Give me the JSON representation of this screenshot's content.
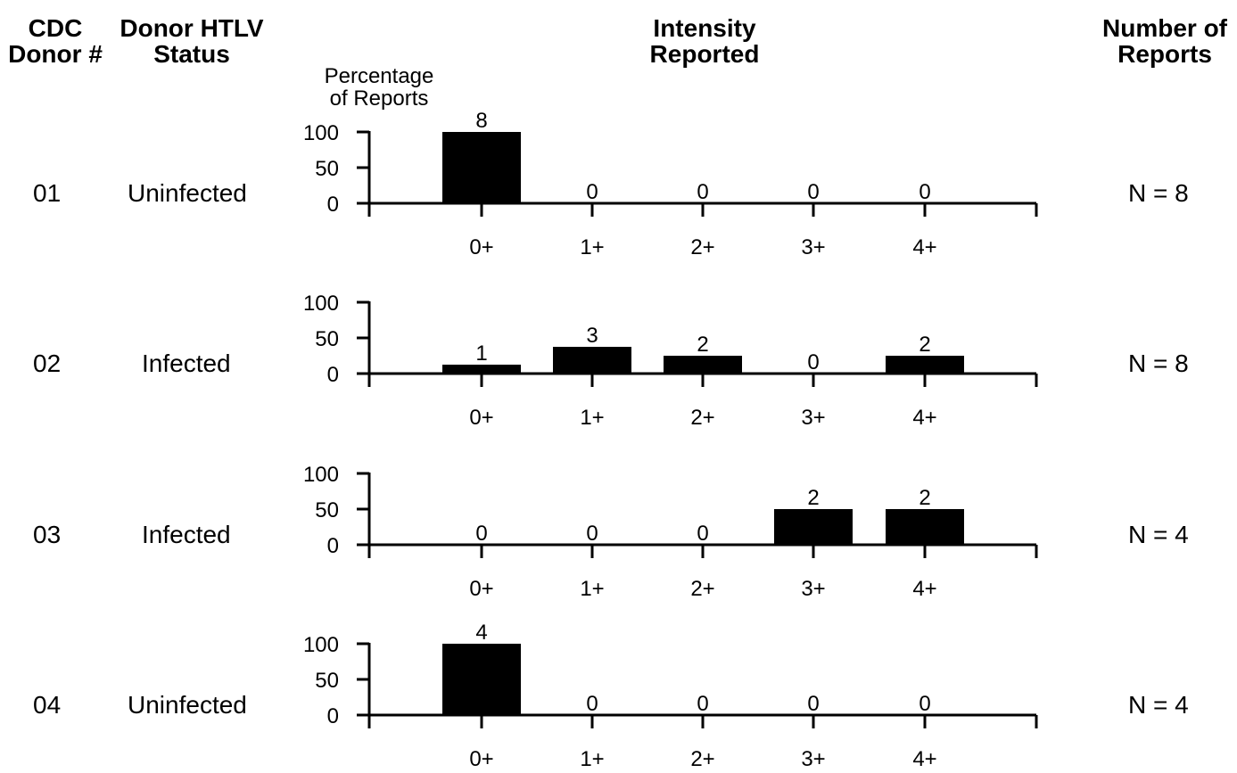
{
  "headers": {
    "donor_num": [
      "CDC",
      "Donor #"
    ],
    "status": [
      "Donor HTLV",
      "Status"
    ],
    "intensity": [
      "Intensity",
      "Reported"
    ],
    "reports": [
      "Number of",
      "Reports"
    ]
  },
  "chart_data": {
    "type": "bar",
    "ylabel": [
      "Percentage",
      "of Reports"
    ],
    "categories": [
      "0+",
      "1+",
      "2+",
      "3+",
      "4+"
    ],
    "yticks": [
      0,
      50,
      100
    ],
    "ylim": [
      0,
      100
    ],
    "rows": [
      {
        "donor": "01",
        "status": "Uninfected",
        "n_label": "N = 8",
        "counts": [
          8,
          0,
          0,
          0,
          0
        ],
        "values": [
          100,
          0,
          0,
          0,
          0
        ]
      },
      {
        "donor": "02",
        "status": "Infected",
        "n_label": "N = 8",
        "counts": [
          1,
          3,
          2,
          0,
          2
        ],
        "values": [
          12.5,
          37.5,
          25,
          0,
          25
        ]
      },
      {
        "donor": "03",
        "status": "Infected",
        "n_label": "N = 4",
        "counts": [
          0,
          0,
          0,
          2,
          2
        ],
        "values": [
          0,
          0,
          0,
          50,
          50
        ]
      },
      {
        "donor": "04",
        "status": "Uninfected",
        "n_label": "N = 4",
        "counts": [
          4,
          0,
          0,
          0,
          0
        ],
        "values": [
          100,
          0,
          0,
          0,
          0
        ]
      }
    ]
  }
}
